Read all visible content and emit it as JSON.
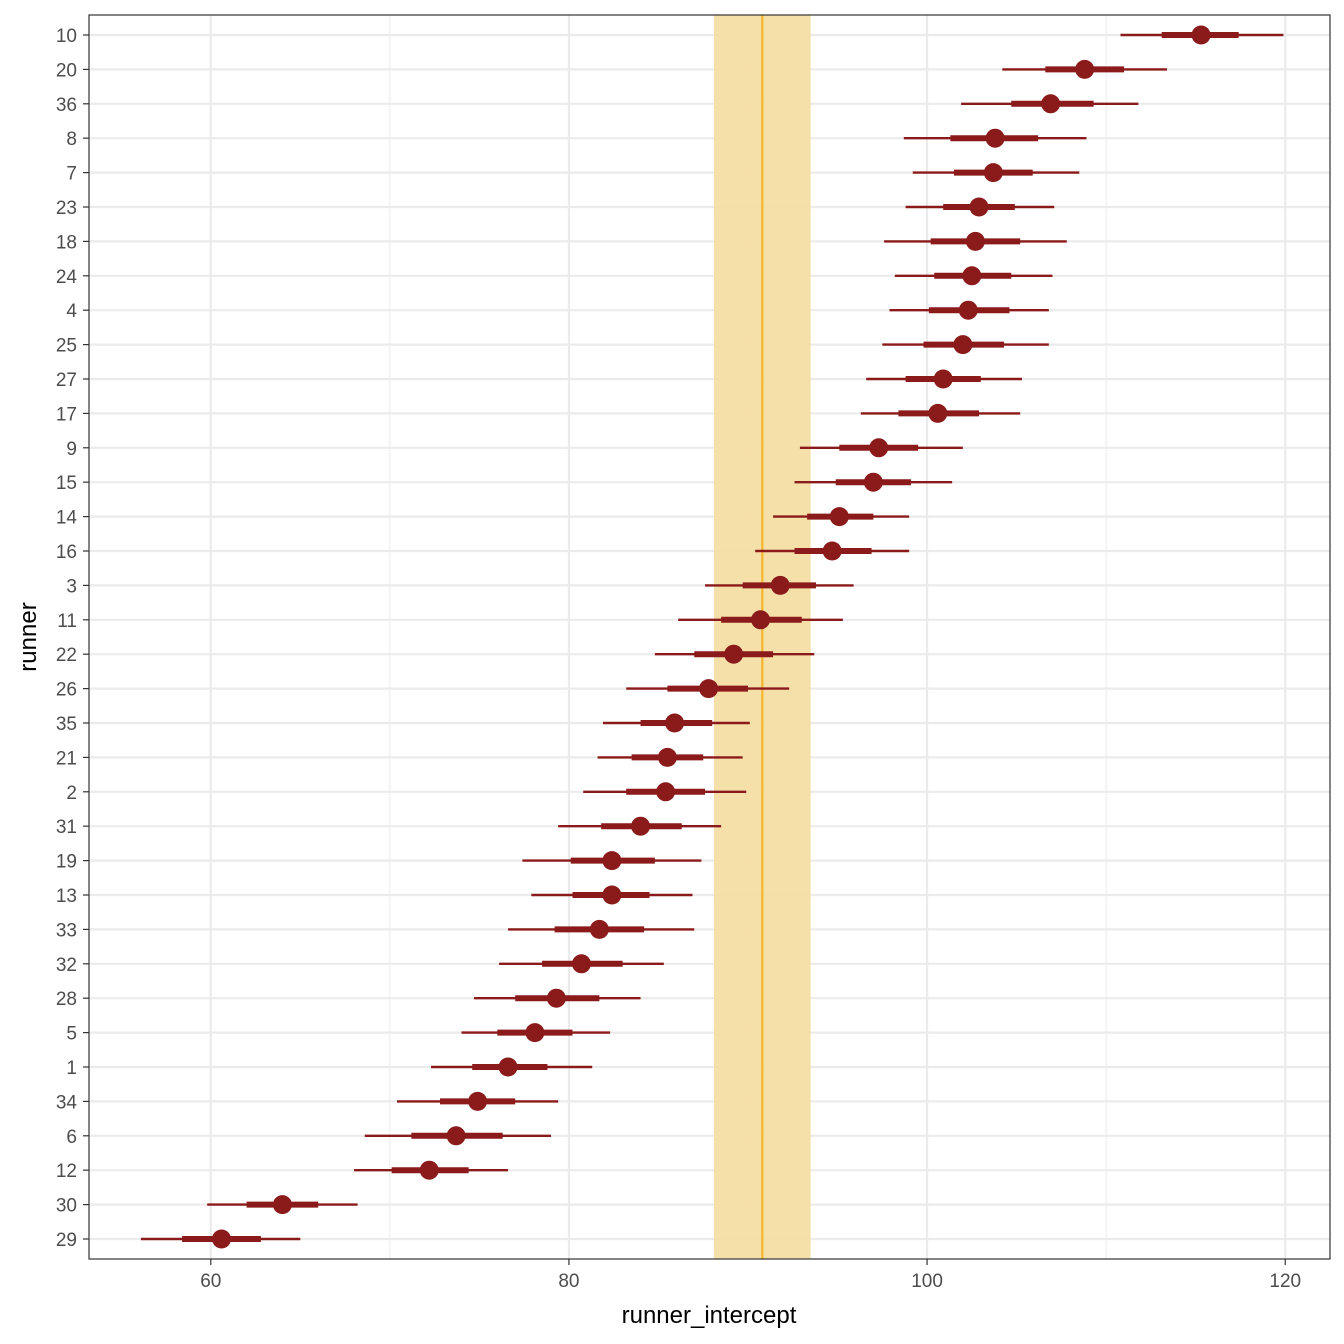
{
  "chart_data": {
    "type": "pointrange",
    "xlabel": "runner_intercept",
    "ylabel": "runner",
    "xlim": [
      53.2,
      122.5
    ],
    "x_ticks": [
      60,
      80,
      100,
      120
    ],
    "grid": true,
    "reference_line": {
      "value": 90.8,
      "band": [
        88.1,
        93.5
      ],
      "color": "#f4b62c",
      "band_color": "#f6dea4"
    },
    "point_color": "#8b1a1a",
    "rows": [
      {
        "runner": "10",
        "mean": 115.3,
        "inner": [
          113.1,
          117.4
        ],
        "outer": [
          110.8,
          119.9
        ]
      },
      {
        "runner": "20",
        "mean": 108.8,
        "inner": [
          106.6,
          111.0
        ],
        "outer": [
          104.2,
          113.4
        ]
      },
      {
        "runner": "36",
        "mean": 106.9,
        "inner": [
          104.7,
          109.3
        ],
        "outer": [
          101.9,
          111.8
        ]
      },
      {
        "runner": "8",
        "mean": 103.8,
        "inner": [
          101.3,
          106.2
        ],
        "outer": [
          98.7,
          108.9
        ]
      },
      {
        "runner": "7",
        "mean": 103.7,
        "inner": [
          101.5,
          105.9
        ],
        "outer": [
          99.2,
          108.5
        ]
      },
      {
        "runner": "23",
        "mean": 102.9,
        "inner": [
          100.9,
          104.9
        ],
        "outer": [
          98.8,
          107.1
        ]
      },
      {
        "runner": "18",
        "mean": 102.7,
        "inner": [
          100.2,
          105.2
        ],
        "outer": [
          97.6,
          107.8
        ]
      },
      {
        "runner": "24",
        "mean": 102.5,
        "inner": [
          100.4,
          104.7
        ],
        "outer": [
          98.2,
          107.0
        ]
      },
      {
        "runner": "4",
        "mean": 102.3,
        "inner": [
          100.1,
          104.6
        ],
        "outer": [
          97.9,
          106.8
        ]
      },
      {
        "runner": "25",
        "mean": 102.0,
        "inner": [
          99.8,
          104.3
        ],
        "outer": [
          97.5,
          106.8
        ]
      },
      {
        "runner": "27",
        "mean": 100.9,
        "inner": [
          98.8,
          103.0
        ],
        "outer": [
          96.6,
          105.3
        ]
      },
      {
        "runner": "17",
        "mean": 100.6,
        "inner": [
          98.4,
          102.9
        ],
        "outer": [
          96.3,
          105.2
        ]
      },
      {
        "runner": "9",
        "mean": 97.3,
        "inner": [
          95.1,
          99.5
        ],
        "outer": [
          92.9,
          102.0
        ]
      },
      {
        "runner": "15",
        "mean": 97.0,
        "inner": [
          94.9,
          99.1
        ],
        "outer": [
          92.6,
          101.4
        ]
      },
      {
        "runner": "14",
        "mean": 95.1,
        "inner": [
          93.3,
          97.0
        ],
        "outer": [
          91.4,
          99.0
        ]
      },
      {
        "runner": "16",
        "mean": 94.7,
        "inner": [
          92.6,
          96.9
        ],
        "outer": [
          90.4,
          99.0
        ]
      },
      {
        "runner": "3",
        "mean": 91.8,
        "inner": [
          89.7,
          93.8
        ],
        "outer": [
          87.6,
          95.9
        ]
      },
      {
        "runner": "11",
        "mean": 90.7,
        "inner": [
          88.5,
          93.0
        ],
        "outer": [
          86.1,
          95.3
        ]
      },
      {
        "runner": "22",
        "mean": 89.2,
        "inner": [
          87.0,
          91.4
        ],
        "outer": [
          84.8,
          93.7
        ]
      },
      {
        "runner": "26",
        "mean": 87.8,
        "inner": [
          85.5,
          90.0
        ],
        "outer": [
          83.2,
          92.3
        ]
      },
      {
        "runner": "35",
        "mean": 85.9,
        "inner": [
          84.0,
          88.0
        ],
        "outer": [
          81.9,
          90.1
        ]
      },
      {
        "runner": "21",
        "mean": 85.5,
        "inner": [
          83.5,
          87.5
        ],
        "outer": [
          81.6,
          89.7
        ]
      },
      {
        "runner": "2",
        "mean": 85.4,
        "inner": [
          83.2,
          87.6
        ],
        "outer": [
          80.8,
          89.9
        ]
      },
      {
        "runner": "31",
        "mean": 84.0,
        "inner": [
          81.8,
          86.3
        ],
        "outer": [
          79.4,
          88.5
        ]
      },
      {
        "runner": "19",
        "mean": 82.4,
        "inner": [
          80.1,
          84.8
        ],
        "outer": [
          77.4,
          87.4
        ]
      },
      {
        "runner": "13",
        "mean": 82.4,
        "inner": [
          80.2,
          84.5
        ],
        "outer": [
          77.9,
          86.9
        ]
      },
      {
        "runner": "33",
        "mean": 81.7,
        "inner": [
          79.2,
          84.2
        ],
        "outer": [
          76.6,
          87.0
        ]
      },
      {
        "runner": "32",
        "mean": 80.7,
        "inner": [
          78.5,
          83.0
        ],
        "outer": [
          76.1,
          85.3
        ]
      },
      {
        "runner": "28",
        "mean": 79.3,
        "inner": [
          77.0,
          81.7
        ],
        "outer": [
          74.7,
          84.0
        ]
      },
      {
        "runner": "5",
        "mean": 78.1,
        "inner": [
          76.0,
          80.2
        ],
        "outer": [
          74.0,
          82.3
        ]
      },
      {
        "runner": "1",
        "mean": 76.6,
        "inner": [
          74.6,
          78.8
        ],
        "outer": [
          72.3,
          81.3
        ]
      },
      {
        "runner": "34",
        "mean": 74.9,
        "inner": [
          72.8,
          77.0
        ],
        "outer": [
          70.4,
          79.4
        ]
      },
      {
        "runner": "6",
        "mean": 73.7,
        "inner": [
          71.2,
          76.3
        ],
        "outer": [
          68.6,
          79.0
        ]
      },
      {
        "runner": "12",
        "mean": 72.2,
        "inner": [
          70.1,
          74.4
        ],
        "outer": [
          68.0,
          76.6
        ]
      },
      {
        "runner": "30",
        "mean": 64.0,
        "inner": [
          62.0,
          66.0
        ],
        "outer": [
          59.8,
          68.2
        ]
      },
      {
        "runner": "29",
        "mean": 60.6,
        "inner": [
          58.4,
          62.8
        ],
        "outer": [
          56.1,
          65.0
        ]
      }
    ]
  }
}
